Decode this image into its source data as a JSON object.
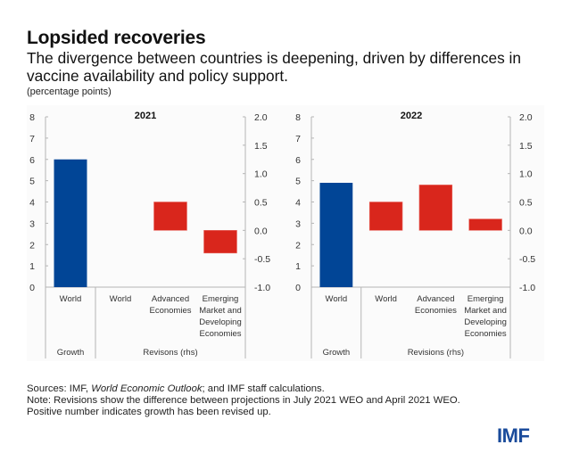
{
  "header": {
    "title": "Lopsided recoveries",
    "subtitle": "The divergence between countries is deepening, driven by differences in vaccine availability and policy support.",
    "units": "(percentage points)"
  },
  "colors": {
    "growth": "#014596",
    "revision": "#d9261c",
    "axis": "#b5b5b5",
    "brand": "#1a4b9b"
  },
  "chart_data": [
    {
      "type": "bar",
      "title": "2021",
      "categories": [
        "World",
        "World",
        "Advanced Economies",
        "Emerging Market and Developing Economies"
      ],
      "category_lines": [
        [
          "World"
        ],
        [
          "World"
        ],
        [
          "Advanced",
          "Economies"
        ],
        [
          "Emerging",
          "Market and",
          "Developing",
          "Economies"
        ]
      ],
      "groups": [
        {
          "label": "Growth",
          "span": [
            0,
            0
          ]
        },
        {
          "label": "Revisons (rhs)",
          "span": [
            1,
            3
          ]
        }
      ],
      "series": [
        {
          "name": "Growth",
          "axis": "left",
          "values": [
            6.0,
            null,
            null,
            null
          ]
        },
        {
          "name": "Revisions",
          "axis": "right",
          "values": [
            null,
            0.0,
            0.5,
            -0.4
          ]
        }
      ],
      "ylim_left": [
        0,
        8
      ],
      "yticks_left": [
        "0",
        "1",
        "2",
        "3",
        "4",
        "5",
        "6",
        "7",
        "8"
      ],
      "ylim_right": [
        -1.0,
        2.0
      ],
      "yticks_right": [
        "-1.0",
        "-0.5",
        "0.0",
        "0.5",
        "1.0",
        "1.5",
        "2.0"
      ],
      "grid": false
    },
    {
      "type": "bar",
      "title": "2022",
      "categories": [
        "World",
        "World",
        "Advanced Economies",
        "Emerging Market and Developing Economies"
      ],
      "category_lines": [
        [
          "World"
        ],
        [
          "World"
        ],
        [
          "Advanced",
          "Economies"
        ],
        [
          "Emerging",
          "Market and",
          "Developing",
          "Economies"
        ]
      ],
      "groups": [
        {
          "label": "Growth",
          "span": [
            0,
            0
          ]
        },
        {
          "label": "Revisions (rhs)",
          "span": [
            1,
            3
          ]
        }
      ],
      "series": [
        {
          "name": "Growth",
          "axis": "left",
          "values": [
            4.9,
            null,
            null,
            null
          ]
        },
        {
          "name": "Revisions",
          "axis": "right",
          "values": [
            null,
            0.5,
            0.8,
            0.2
          ]
        }
      ],
      "ylim_left": [
        0,
        8
      ],
      "yticks_left": [
        "0",
        "1",
        "2",
        "3",
        "4",
        "5",
        "6",
        "7",
        "8"
      ],
      "ylim_right": [
        -1.0,
        2.0
      ],
      "yticks_right": [
        "-1.0",
        "-0.5",
        "0.0",
        "0.5",
        "1.0",
        "1.5",
        "2.0"
      ],
      "grid": false
    }
  ],
  "footer": {
    "sources_prefix": "Sources: IMF, ",
    "sources_italic": "World Economic Outlook",
    "sources_suffix": "; and IMF staff calculations.",
    "note_line1": "Note: Revisions show the difference between projections in July 2021 WEO and April 2021 WEO.",
    "note_line2": "Positive number indicates growth has been revised up.",
    "logo": "IMF"
  }
}
